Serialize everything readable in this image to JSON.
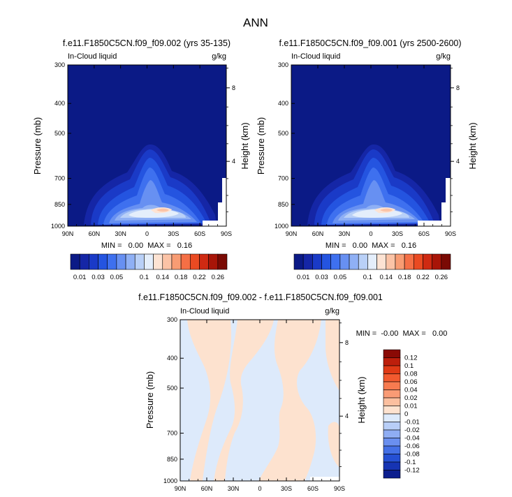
{
  "page_title": "ANN",
  "chart_data": [
    {
      "type": "heatmap",
      "title": "f.e11.F1850C5CN.f09_f09.002 (yrs 35-135)",
      "left_string": "In-Cloud liquid",
      "right_string": "g/kg",
      "xlabel": "",
      "ylabel": "Pressure (mb)",
      "y2label": "Height (km)",
      "x_tick_labels": [
        "90N",
        "60N",
        "30N",
        "0",
        "30S",
        "60S",
        "90S"
      ],
      "x_range": [
        "90N",
        "90S"
      ],
      "y_tick_labels": [
        "300",
        "400",
        "500",
        "700",
        "850",
        "1000"
      ],
      "y_range": [
        1000,
        300
      ],
      "y_scale": "log",
      "y2_tick_labels": [
        "4",
        "8"
      ],
      "stats_text": "MIN =   0.00  MAX =   0.16",
      "colorbar": {
        "orientation": "horizontal",
        "levels": [
          0.01,
          0.02,
          0.03,
          0.04,
          0.05,
          0.06,
          0.08,
          0.1,
          0.12,
          0.14,
          0.16,
          0.18,
          0.2,
          0.22,
          0.24,
          0.26
        ],
        "labels": [
          "0.01",
          "0.03",
          "0.05",
          "0.1",
          "0.14",
          "0.18",
          "0.22",
          "0.26"
        ],
        "colors": [
          "#0b1a86",
          "#1526a6",
          "#1a3ac7",
          "#2454e0",
          "#3e70ef",
          "#6790f2",
          "#8fb0f5",
          "#b9d0f7",
          "#e4eefb",
          "#fde3d3",
          "#fbc3a6",
          "#f89c73",
          "#f56f45",
          "#ea4a22",
          "#cf2a12",
          "#a81508",
          "#7a0a04"
        ]
      }
    },
    {
      "type": "heatmap",
      "title": "f.e11.F1850C5CN.f09_f09.001 (yrs 2500-2600)",
      "left_string": "In-Cloud liquid",
      "right_string": "g/kg",
      "xlabel": "",
      "ylabel": "Pressure (mb)",
      "y2label": "Height (km)",
      "x_tick_labels": [
        "90N",
        "60N",
        "30N",
        "0",
        "30S",
        "60S",
        "90S"
      ],
      "x_range": [
        "90N",
        "90S"
      ],
      "y_tick_labels": [
        "300",
        "400",
        "500",
        "700",
        "850",
        "1000"
      ],
      "y_range": [
        1000,
        300
      ],
      "y_scale": "log",
      "y2_tick_labels": [
        "4",
        "8"
      ],
      "stats_text": "MIN =   0.00  MAX =   0.16",
      "colorbar": {
        "orientation": "horizontal",
        "levels": [
          0.01,
          0.02,
          0.03,
          0.04,
          0.05,
          0.06,
          0.08,
          0.1,
          0.12,
          0.14,
          0.16,
          0.18,
          0.2,
          0.22,
          0.24,
          0.26
        ],
        "labels": [
          "0.01",
          "0.03",
          "0.05",
          "0.1",
          "0.14",
          "0.18",
          "0.22",
          "0.26"
        ],
        "colors": [
          "#0b1a86",
          "#1526a6",
          "#1a3ac7",
          "#2454e0",
          "#3e70ef",
          "#6790f2",
          "#8fb0f5",
          "#b9d0f7",
          "#e4eefb",
          "#fde3d3",
          "#fbc3a6",
          "#f89c73",
          "#f56f45",
          "#ea4a22",
          "#cf2a12",
          "#a81508",
          "#7a0a04"
        ]
      }
    },
    {
      "type": "heatmap",
      "title": "f.e11.F1850C5CN.f09_f09.002 - f.e11.F1850C5CN.f09_f09.001",
      "left_string": "In-Cloud liquid",
      "right_string": "g/kg",
      "xlabel": "",
      "ylabel": "Pressure (mb)",
      "y2label": "Height (km)",
      "x_tick_labels": [
        "90N",
        "60N",
        "30N",
        "0",
        "30S",
        "60S",
        "90S"
      ],
      "x_range": [
        "90N",
        "90S"
      ],
      "y_tick_labels": [
        "300",
        "400",
        "500",
        "700",
        "850",
        "1000"
      ],
      "y_range": [
        1000,
        300
      ],
      "y_scale": "log",
      "y2_tick_labels": [
        "4",
        "8"
      ],
      "stats_text": "MIN =  -0.00  MAX =   0.00",
      "colorbar": {
        "orientation": "vertical",
        "labels": [
          "0.12",
          "0.1",
          "0.08",
          "0.06",
          "0.04",
          "0.02",
          "0.01",
          "0",
          "-0.01",
          "-0.02",
          "-0.04",
          "-0.06",
          "-0.08",
          "-0.1",
          "-0.12"
        ],
        "colors": [
          "#8a0a05",
          "#bd1f0c",
          "#e03a16",
          "#f25a2f",
          "#f77b50",
          "#f99b75",
          "#fbbf9f",
          "#fde2cf",
          "#ddeafb",
          "#b8cef7",
          "#8fadf3",
          "#6a8fef",
          "#4470e6",
          "#2550d4",
          "#1634b3",
          "#0c1e8e"
        ]
      }
    }
  ]
}
